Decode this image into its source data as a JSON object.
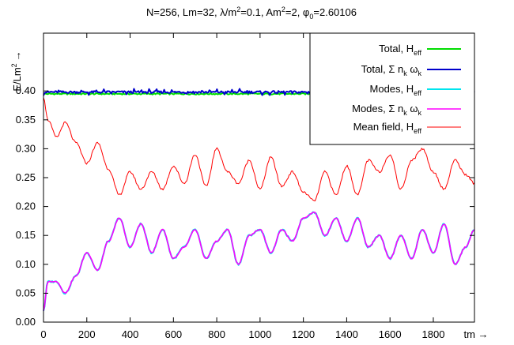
{
  "chart_data": {
    "type": "line",
    "title": "N=256, Lm=32, λ/m²=0.1, Am²=2, φ₀=2.60106",
    "title_parts": {
      "p1": "N=256, Lm=32, λ/m",
      "p1_sup": "2",
      "p2": "=0.1, Am",
      "p2_sup": "2",
      "p3": "=2, φ",
      "p3_sub": "0",
      "p4": "=2.60106"
    },
    "xlabel": "tm →",
    "ylabel_parts": {
      "base": "E/Lm",
      "sup": "2",
      "arrow": "→"
    },
    "xlim": [
      0,
      1990
    ],
    "ylim": [
      0,
      0.5
    ],
    "x_ticks": [
      0,
      200,
      400,
      600,
      800,
      1000,
      1200,
      1400,
      1600,
      1800
    ],
    "x_tick_labels": [
      "0",
      "200",
      "400",
      "600",
      "800",
      "1000",
      "1200",
      "1400",
      "1600",
      "1800"
    ],
    "y_ticks": [
      0,
      0.05,
      0.1,
      0.15,
      0.2,
      0.25,
      0.3,
      0.35,
      0.4
    ],
    "y_tick_labels": [
      "0.00",
      "0.05",
      "0.10",
      "0.15",
      "0.20",
      "0.25",
      "0.30",
      "0.35",
      "0.40"
    ],
    "grid": false,
    "legend_position": "top-right",
    "series": [
      {
        "name": "Total, H_eff",
        "label_parts": {
          "base": "Total, H",
          "sub": "eff"
        },
        "color": "#00dd00",
        "x": [
          0,
          1990
        ],
        "y": [
          0.395,
          0.395
        ]
      },
      {
        "name": "Total, Σ n_k ω_k",
        "label_parts": {
          "base": "Total, Σ n",
          "sub1": "k",
          "mid": " ω",
          "sub2": "k"
        },
        "color": "#0000cc",
        "x": [
          0,
          1990
        ],
        "y": [
          0.398,
          0.398
        ]
      },
      {
        "name": "Modes, H_eff",
        "label_parts": {
          "base": "Modes, H",
          "sub": "eff"
        },
        "color": "#00e5ee",
        "x": [
          0,
          20,
          60,
          100,
          150,
          200,
          250,
          300,
          350,
          400,
          450,
          500,
          550,
          600,
          650,
          700,
          750,
          800,
          850,
          900,
          950,
          1000,
          1050,
          1100,
          1150,
          1200,
          1250,
          1300,
          1350,
          1400,
          1450,
          1500,
          1550,
          1600,
          1650,
          1700,
          1750,
          1800,
          1850,
          1900,
          1950,
          1990
        ],
        "y": [
          0.02,
          0.07,
          0.07,
          0.05,
          0.08,
          0.12,
          0.09,
          0.14,
          0.18,
          0.13,
          0.17,
          0.12,
          0.16,
          0.11,
          0.13,
          0.16,
          0.11,
          0.14,
          0.16,
          0.1,
          0.15,
          0.16,
          0.12,
          0.16,
          0.14,
          0.18,
          0.19,
          0.15,
          0.18,
          0.14,
          0.18,
          0.13,
          0.15,
          0.11,
          0.15,
          0.11,
          0.16,
          0.12,
          0.17,
          0.1,
          0.13,
          0.16
        ]
      },
      {
        "name": "Modes, Σ n_k ω_k",
        "label_parts": {
          "base": "Modes, Σ n",
          "sub1": "k",
          "mid": " ω",
          "sub2": "k"
        },
        "color": "#ff00ff",
        "x": [
          0,
          20,
          60,
          100,
          150,
          200,
          250,
          300,
          350,
          400,
          450,
          500,
          550,
          600,
          650,
          700,
          750,
          800,
          850,
          900,
          950,
          1000,
          1050,
          1100,
          1150,
          1200,
          1250,
          1300,
          1350,
          1400,
          1450,
          1500,
          1550,
          1600,
          1650,
          1700,
          1750,
          1800,
          1850,
          1900,
          1950,
          1990
        ],
        "y": [
          0.02,
          0.07,
          0.07,
          0.05,
          0.08,
          0.12,
          0.09,
          0.14,
          0.18,
          0.13,
          0.17,
          0.12,
          0.16,
          0.11,
          0.13,
          0.16,
          0.11,
          0.14,
          0.16,
          0.1,
          0.15,
          0.16,
          0.12,
          0.16,
          0.14,
          0.18,
          0.19,
          0.15,
          0.18,
          0.14,
          0.18,
          0.13,
          0.15,
          0.11,
          0.15,
          0.11,
          0.16,
          0.12,
          0.17,
          0.1,
          0.13,
          0.16
        ]
      },
      {
        "name": "Mean field, H_eff",
        "label_parts": {
          "base": "Mean field, H",
          "sub": "eff"
        },
        "color": "#ff0000",
        "x": [
          0,
          20,
          60,
          100,
          150,
          200,
          250,
          300,
          350,
          400,
          450,
          500,
          550,
          600,
          650,
          700,
          750,
          800,
          850,
          900,
          950,
          1000,
          1050,
          1100,
          1150,
          1200,
          1250,
          1300,
          1350,
          1400,
          1450,
          1500,
          1550,
          1600,
          1650,
          1700,
          1750,
          1800,
          1850,
          1900,
          1950,
          1990
        ],
        "y": [
          0.39,
          0.35,
          0.32,
          0.345,
          0.31,
          0.275,
          0.31,
          0.265,
          0.22,
          0.26,
          0.23,
          0.26,
          0.23,
          0.27,
          0.24,
          0.29,
          0.235,
          0.3,
          0.26,
          0.24,
          0.28,
          0.23,
          0.285,
          0.235,
          0.26,
          0.225,
          0.21,
          0.26,
          0.22,
          0.27,
          0.22,
          0.28,
          0.26,
          0.29,
          0.23,
          0.28,
          0.3,
          0.26,
          0.23,
          0.28,
          0.255,
          0.24
        ]
      }
    ]
  }
}
